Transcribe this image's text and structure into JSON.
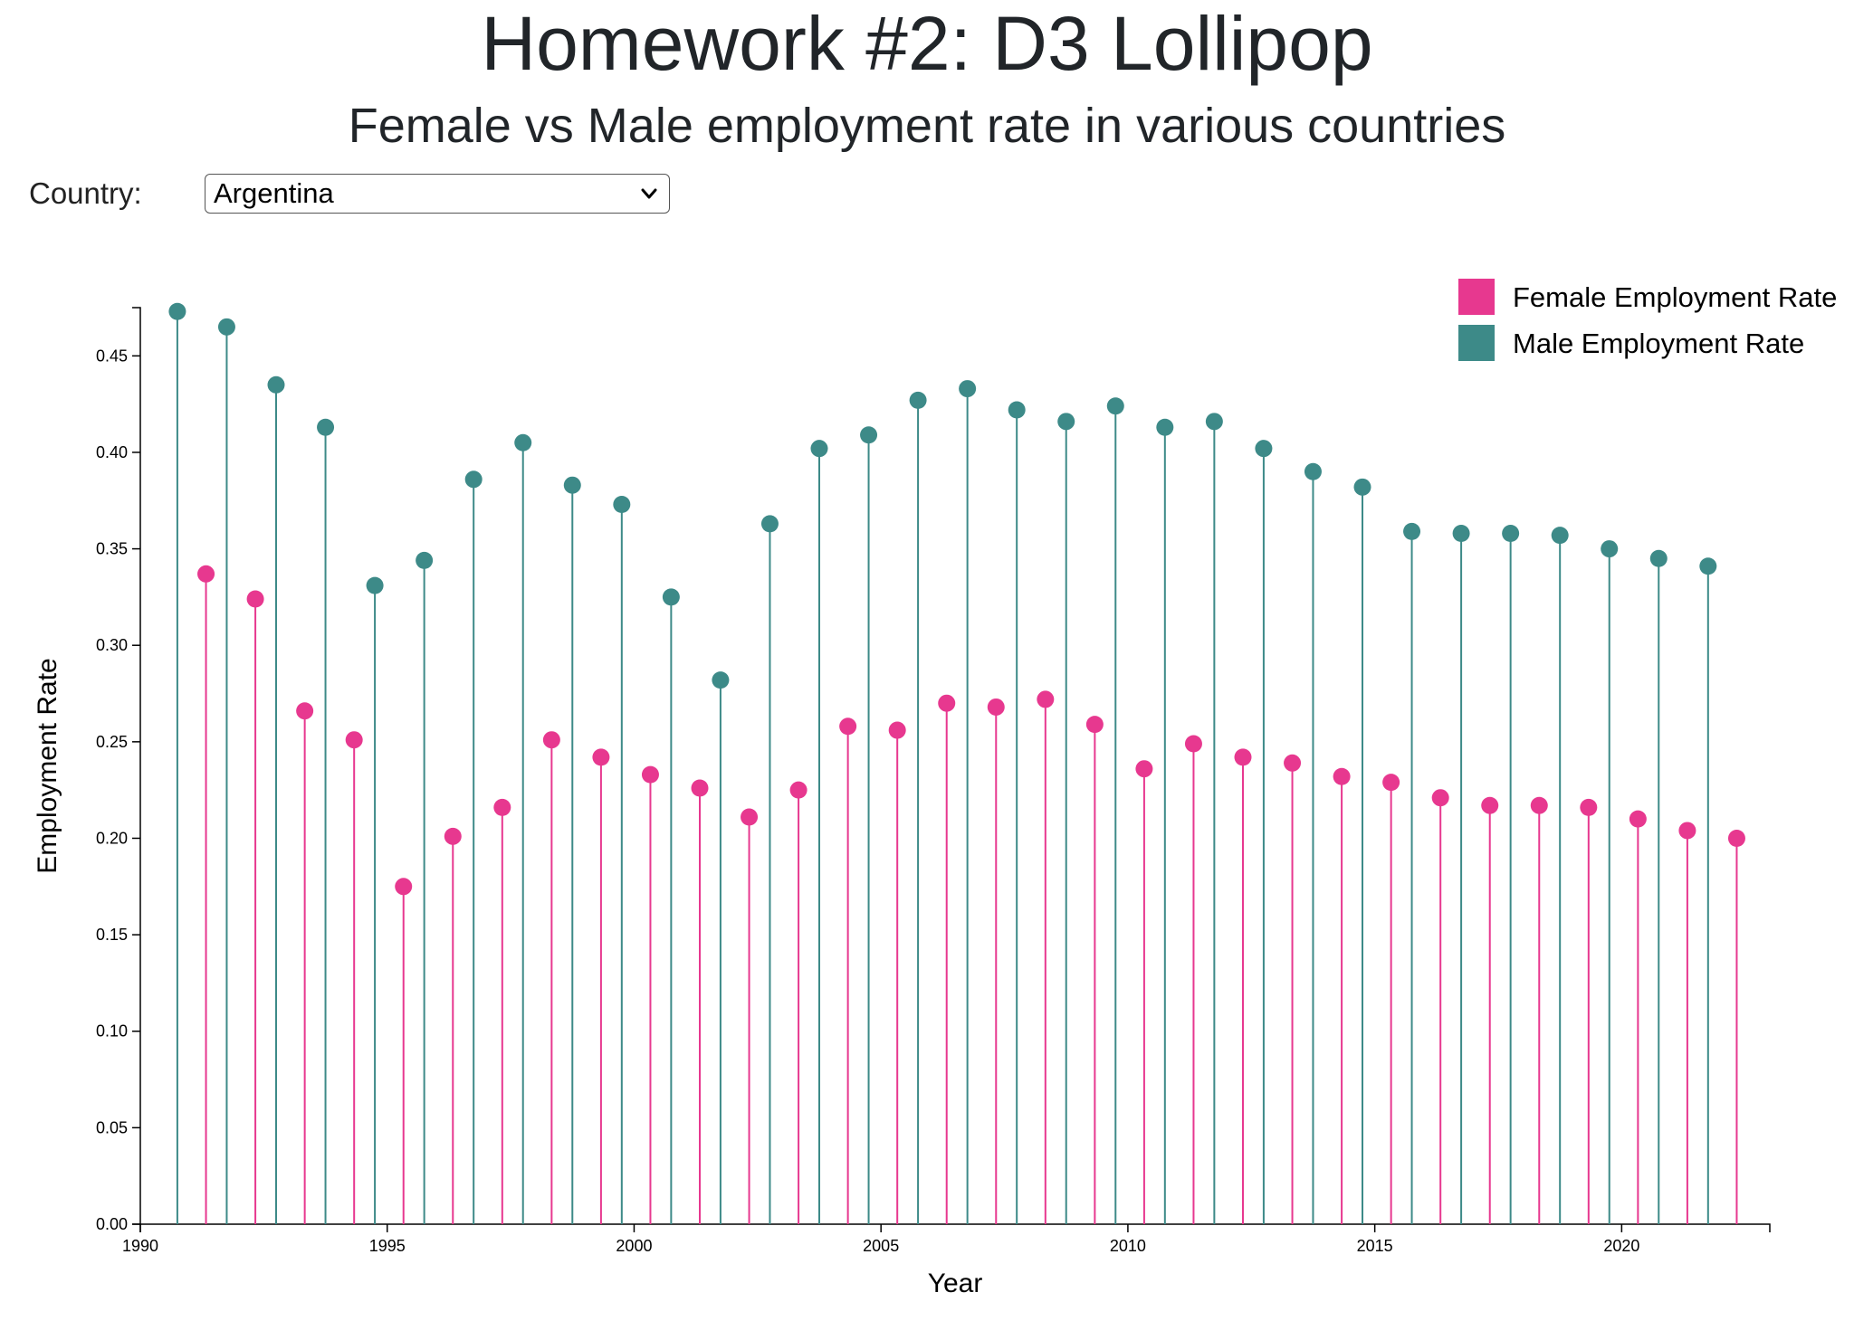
{
  "header": {
    "title": "Homework #2: D3 Lollipop",
    "subtitle": "Female vs Male employment rate in various countries"
  },
  "country_selector": {
    "label": "Country:",
    "selected": "Argentina"
  },
  "colors": {
    "female": "#e7388f",
    "male": "#3d8a88",
    "axis": "#000000"
  },
  "chart_data": {
    "type": "lollipop",
    "xlabel": "Year",
    "ylabel": "Employment Rate",
    "xlim": [
      1990,
      2023
    ],
    "ylim": [
      0,
      0.475
    ],
    "x_ticks": [
      "1990",
      "1995",
      "2000",
      "2005",
      "2010",
      "2015",
      "2020"
    ],
    "y_ticks": [
      "0.00",
      "0.05",
      "0.10",
      "0.15",
      "0.20",
      "0.25",
      "0.30",
      "0.35",
      "0.40",
      "0.45"
    ],
    "legend_position": "top-right",
    "x": [
      1991,
      1992,
      1993,
      1994,
      1995,
      1996,
      1997,
      1998,
      1999,
      2000,
      2001,
      2002,
      2003,
      2004,
      2005,
      2006,
      2007,
      2008,
      2009,
      2010,
      2011,
      2012,
      2013,
      2014,
      2015,
      2016,
      2017,
      2018,
      2019,
      2020,
      2021,
      2022
    ],
    "series": [
      {
        "name": "Female Employment Rate",
        "color": "#e7388f",
        "values": [
          0.337,
          0.324,
          0.266,
          0.251,
          0.175,
          0.201,
          0.216,
          0.251,
          0.242,
          0.233,
          0.226,
          0.211,
          0.225,
          0.258,
          0.256,
          0.27,
          0.268,
          0.272,
          0.259,
          0.236,
          0.249,
          0.242,
          0.239,
          0.232,
          0.229,
          0.221,
          0.217,
          0.217,
          0.216,
          0.21,
          0.204,
          0.2
        ]
      },
      {
        "name": "Male Employment Rate",
        "color": "#3d8a88",
        "values": [
          0.473,
          0.465,
          0.435,
          0.413,
          0.331,
          0.344,
          0.386,
          0.405,
          0.383,
          0.373,
          0.325,
          0.282,
          0.363,
          0.402,
          0.409,
          0.427,
          0.433,
          0.422,
          0.416,
          0.424,
          0.413,
          0.416,
          0.402,
          0.39,
          0.382,
          0.359,
          0.358,
          0.358,
          0.357,
          0.35,
          0.345,
          0.341
        ]
      }
    ]
  }
}
